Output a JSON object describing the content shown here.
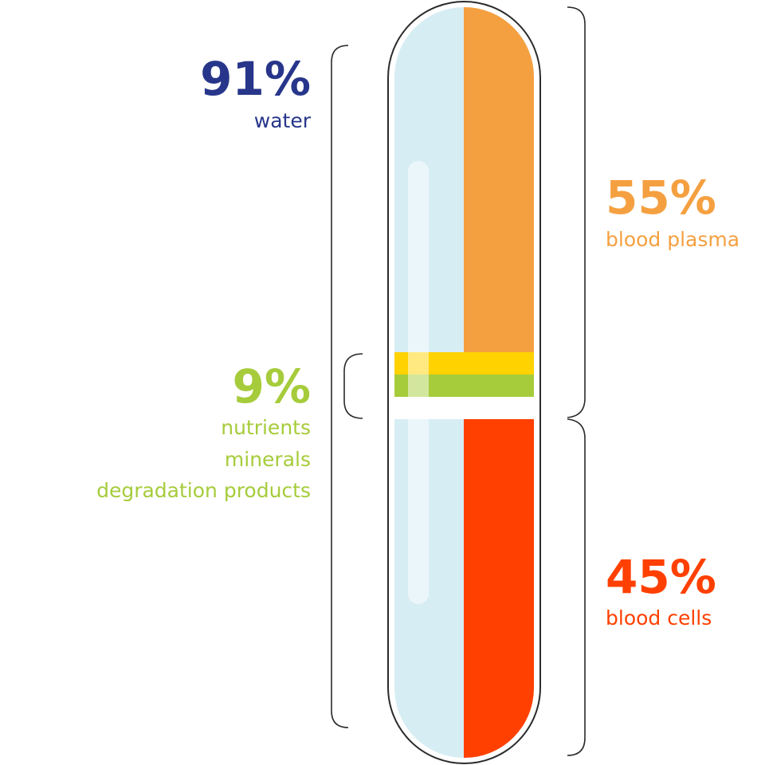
{
  "colors": {
    "water": "#27368a",
    "plasma": "#f5a040",
    "cells": "#ff4000",
    "nutrients": "#a6cc3b",
    "yellow_band": "#ffd200",
    "tube_light_blue": "#d7edf4",
    "outline": "#2b2b2b"
  },
  "water": {
    "percent_text": "91%",
    "label": "water",
    "color": "#27368a"
  },
  "plasma": {
    "percent_text": "55%",
    "label": "blood plasma",
    "color": "#f5a040"
  },
  "nutrients": {
    "percent_text": "9%",
    "labels": [
      "nutrients",
      "minerals",
      "degradation products"
    ],
    "color": "#a6cc3b"
  },
  "cells": {
    "percent_text": "45%",
    "label": "blood cells",
    "color": "#ff4000"
  }
}
